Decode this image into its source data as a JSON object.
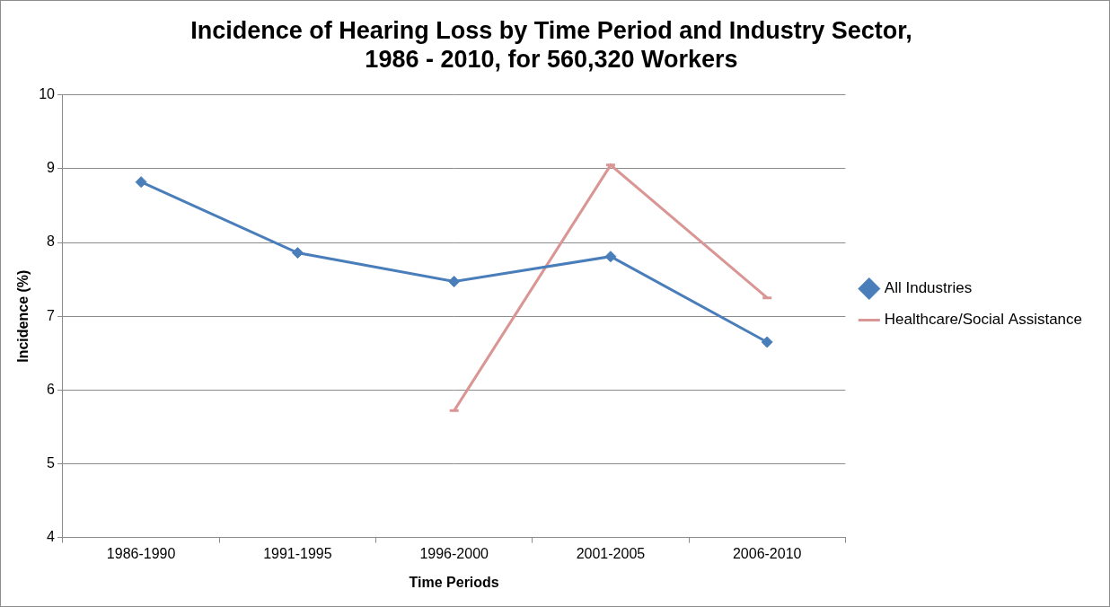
{
  "chart_data": {
    "type": "line",
    "title": [
      "Incidence of Hearing Loss by Time Period and Industry Sector,",
      "1986 - 2010, for 560,320 Workers"
    ],
    "x_label": "Time Periods",
    "y_label": "Incidence (%)",
    "categories": [
      "1986-1990",
      "1991-1995",
      "1996-2000",
      "2001-2005",
      "2006-2010"
    ],
    "series": [
      {
        "name": "All Industries",
        "color": "#4a7ebb",
        "marker": "diamond",
        "line_style": "solid",
        "values": [
          8.82,
          7.86,
          7.47,
          7.81,
          6.65
        ]
      },
      {
        "name": "Healthcare/Social Assistance",
        "color": "#d99694",
        "marker": "dash",
        "line_style": "solid",
        "values": [
          null,
          null,
          5.72,
          9.05,
          7.25
        ]
      }
    ],
    "ylim": [
      4,
      10
    ],
    "yticks": [
      4,
      5,
      6,
      7,
      8,
      9,
      10
    ],
    "grid": true,
    "legend": "right"
  }
}
